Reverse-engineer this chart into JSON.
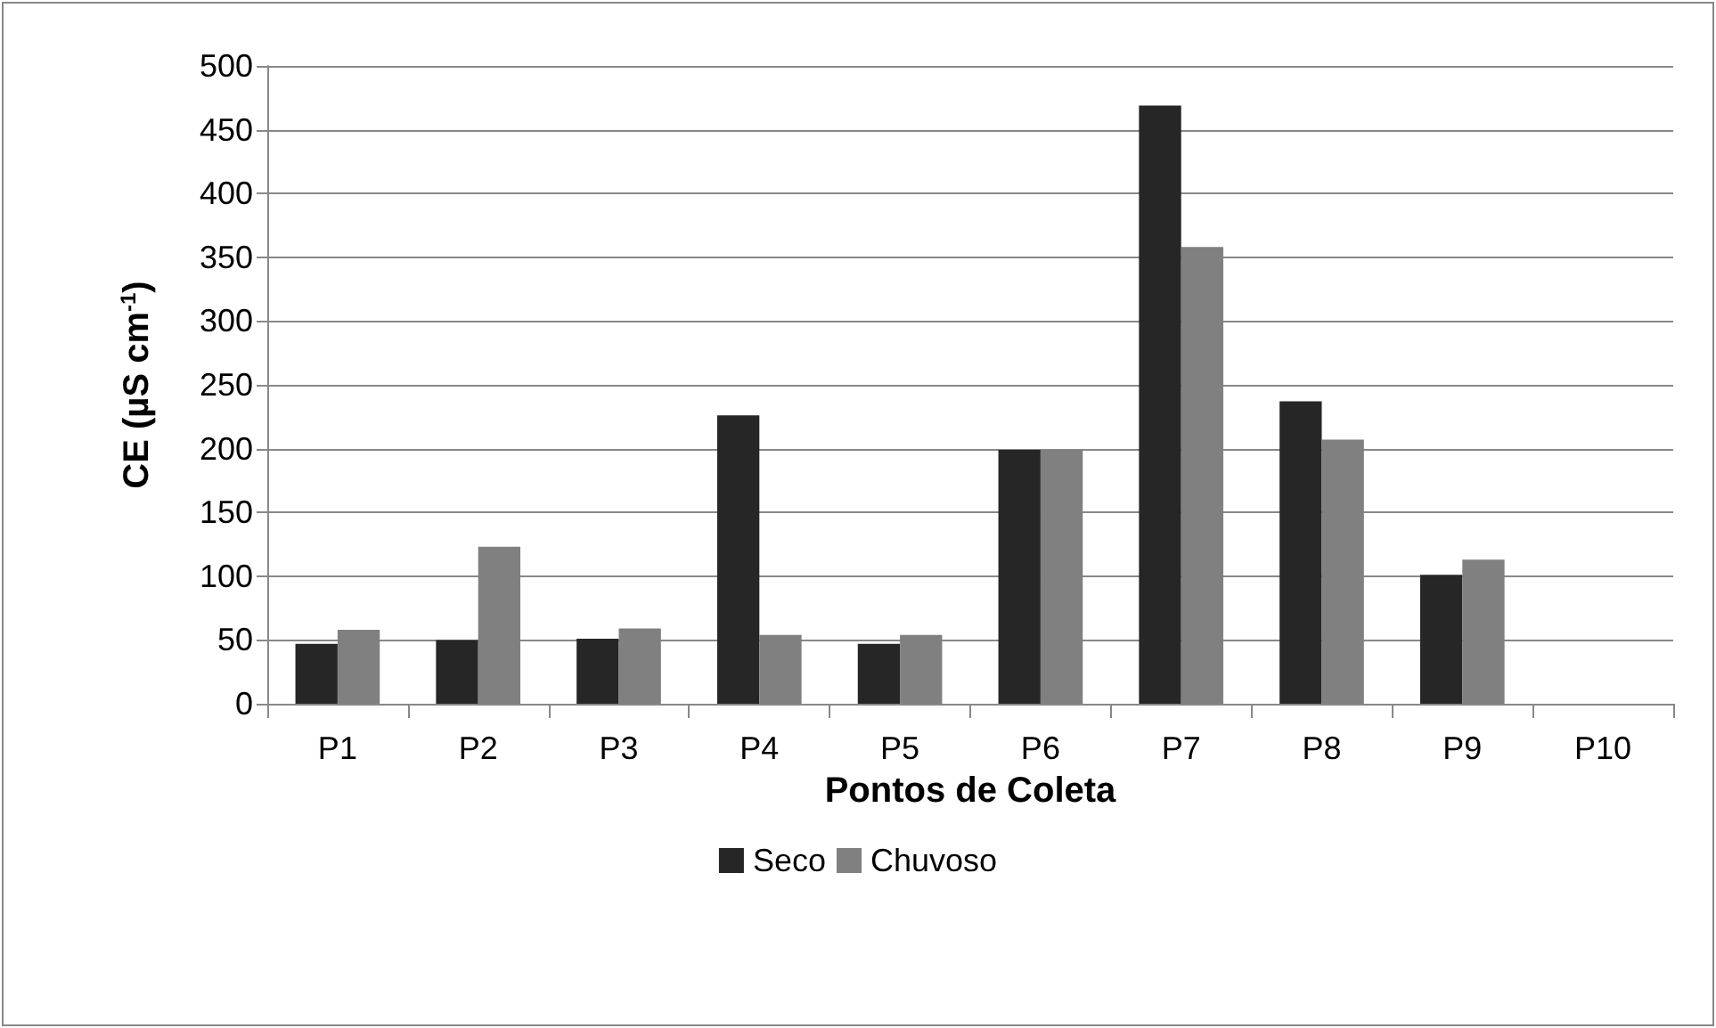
{
  "chart_data": {
    "type": "bar",
    "xlabel": "Pontos de Coleta",
    "ylabel": "CE (µS cm$^{-1}$)",
    "categories": [
      "P1",
      "P2",
      "P3",
      "P4",
      "P5",
      "P6",
      "P7",
      "P8",
      "P9",
      "P10"
    ],
    "series": [
      {
        "name": "Seco",
        "color": "#262626",
        "values": [
          47,
          50,
          51,
          226,
          47,
          199,
          469,
          237,
          101,
          null
        ]
      },
      {
        "name": "Chuvoso",
        "color": "#808080",
        "values": [
          58,
          123,
          59,
          54,
          54,
          199,
          358,
          207,
          113,
          null
        ]
      }
    ],
    "ylim": [
      0,
      500
    ],
    "yticks": [
      0,
      50,
      100,
      150,
      200,
      250,
      300,
      350,
      400,
      450,
      500
    ],
    "grid": "y",
    "legend": "bottom"
  }
}
